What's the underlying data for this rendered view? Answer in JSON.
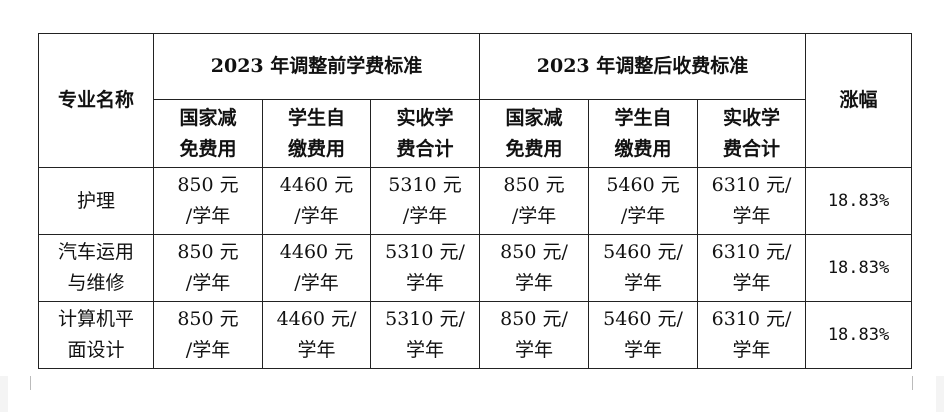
{
  "table": {
    "major_header": "专业名称",
    "group_before": "2023 年调整前学费标准",
    "group_after": "2023 年调整后收费标准",
    "increase_header": "涨幅",
    "sub_headers": [
      "国家减\n免费用",
      "学生自\n缴费用",
      "实收学\n费合计",
      "国家减\n免费用",
      "学生自\n缴费用",
      "实收学\n费合计"
    ],
    "rows": [
      {
        "major": "护理",
        "cells": [
          "850 元\n/学年",
          "4460 元\n/学年",
          "5310 元\n/学年",
          "850 元\n/学年",
          "5460 元\n/学年",
          "6310 元/\n学年"
        ],
        "increase": "18.83%"
      },
      {
        "major": "汽车运用\n与维修",
        "cells": [
          "850 元\n/学年",
          "4460 元\n/学年",
          "5310 元/\n学年",
          "850 元/\n学年",
          "5460 元/\n学年",
          "6310 元/\n学年"
        ],
        "increase": "18.83%"
      },
      {
        "major": "计算机平\n面设计",
        "cells": [
          "850 元\n/学年",
          "4460 元/\n学年",
          "5310 元/\n学年",
          "850 元/\n学年",
          "5460 元/\n学年",
          "6310 元/\n学年"
        ],
        "increase": "18.83%"
      }
    ]
  }
}
